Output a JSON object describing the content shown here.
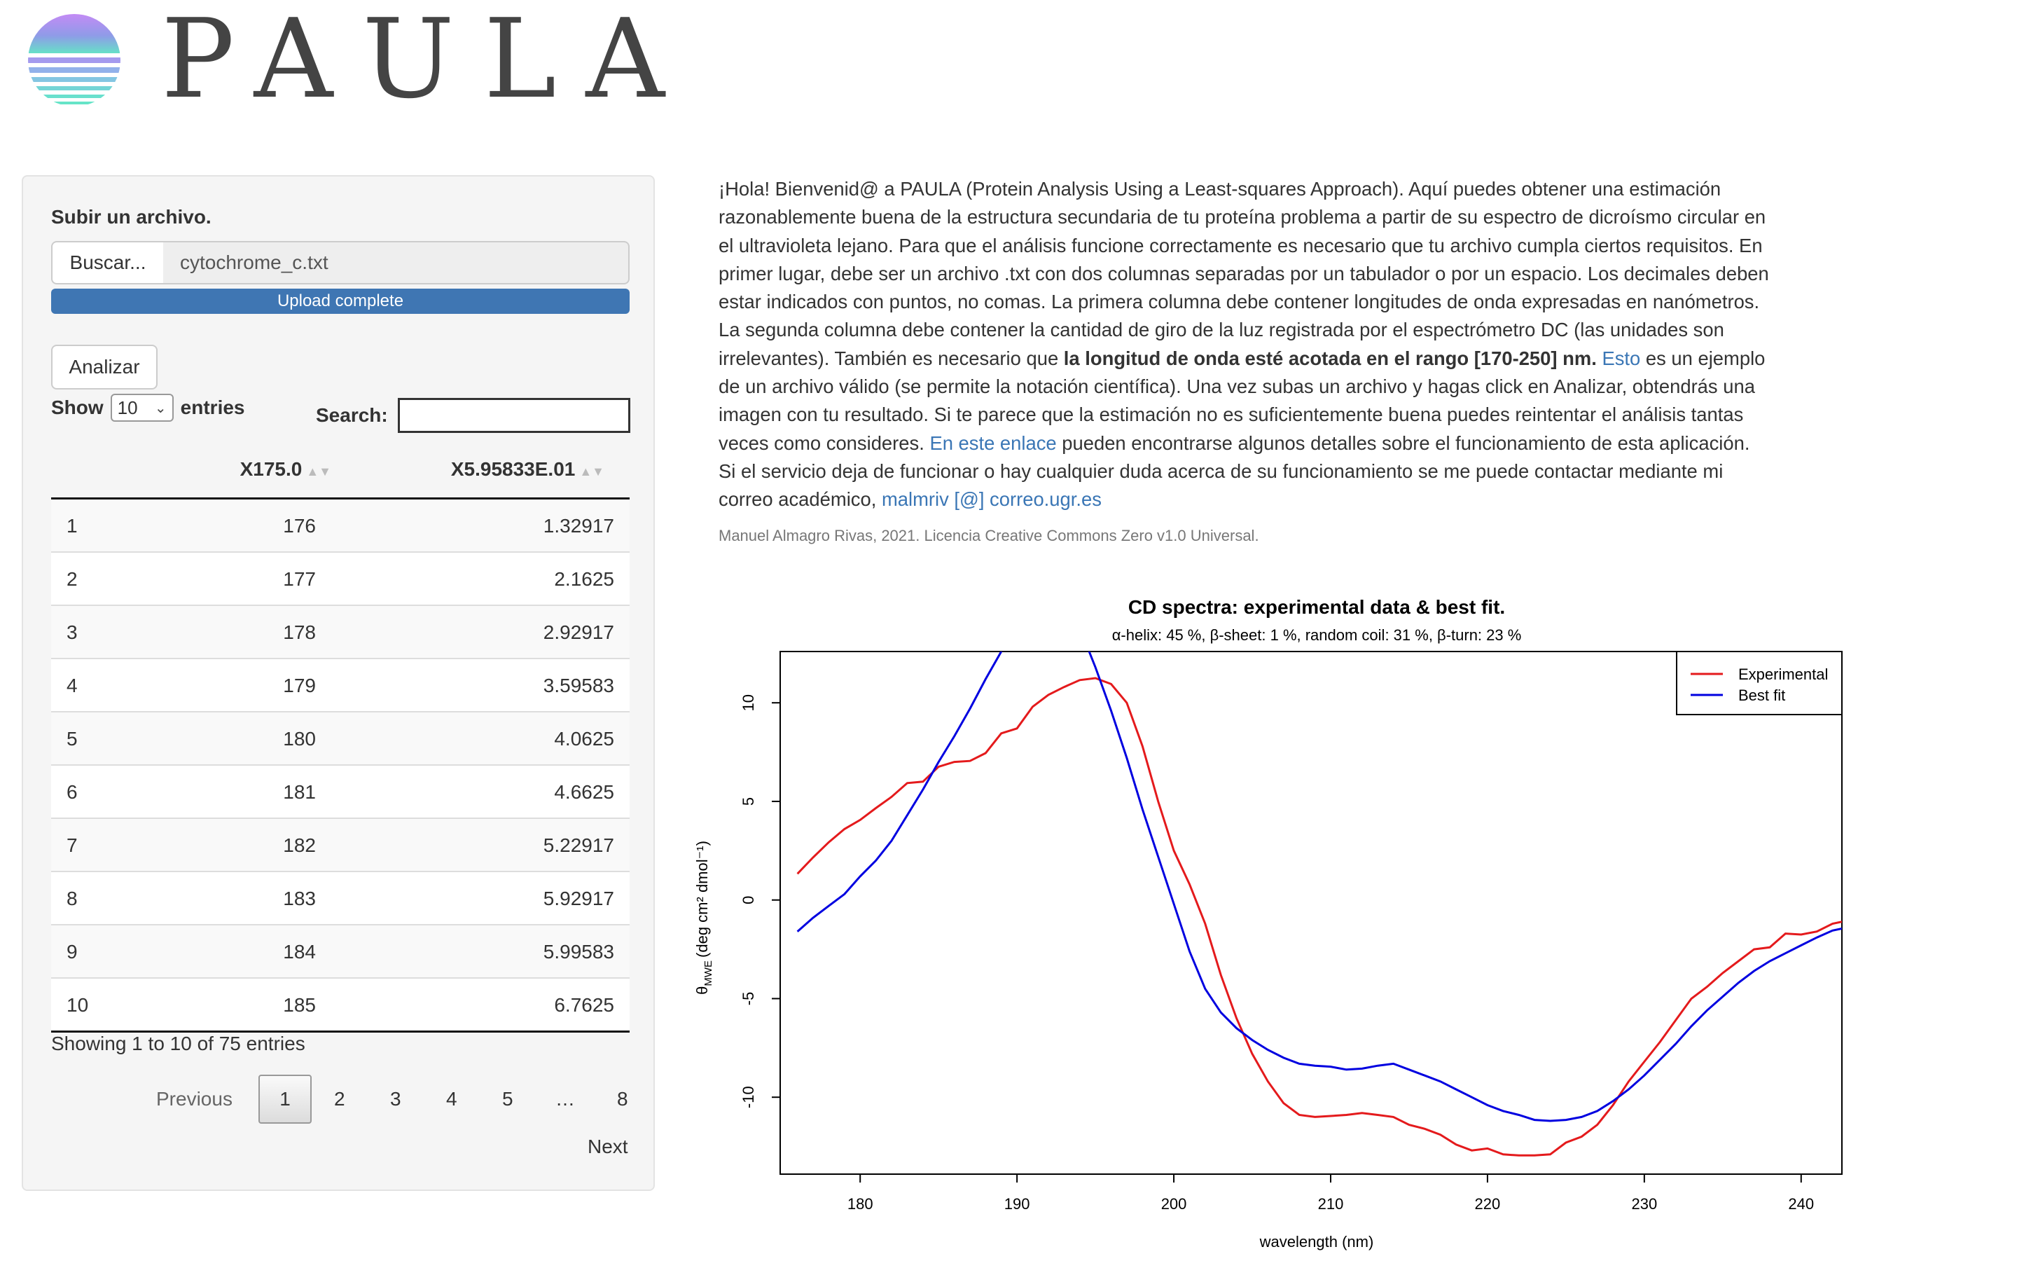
{
  "header": {
    "brand": "PAULA",
    "logo_icon": "sunset-gradient-icon"
  },
  "upload": {
    "label": "Subir un archivo.",
    "browse_label": "Buscar...",
    "file_name": "cytochrome_c.txt",
    "progress_text": "Upload complete",
    "progress": 1.0
  },
  "analyze_label": "Analizar",
  "table": {
    "show_label": "Show",
    "entries_label": "entries",
    "length_value": "10",
    "search_label": "Search:",
    "search_value": "",
    "columns": [
      "X175.0",
      "X5.95833E.01"
    ],
    "rows": [
      [
        "1",
        "176",
        "1.32917"
      ],
      [
        "2",
        "177",
        "2.1625"
      ],
      [
        "3",
        "178",
        "2.92917"
      ],
      [
        "4",
        "179",
        "3.59583"
      ],
      [
        "5",
        "180",
        "4.0625"
      ],
      [
        "6",
        "181",
        "4.6625"
      ],
      [
        "7",
        "182",
        "5.22917"
      ],
      [
        "8",
        "183",
        "5.92917"
      ],
      [
        "9",
        "184",
        "5.99583"
      ],
      [
        "10",
        "185",
        "6.7625"
      ]
    ],
    "info": "Showing 1 to 10 of 75 entries",
    "pagination": {
      "previous": "Previous",
      "pages": [
        "1",
        "2",
        "3",
        "4",
        "5",
        "…",
        "8"
      ],
      "current": "1",
      "next": "Next"
    }
  },
  "intro": {
    "p1": "¡Hola! Bienvenid@ a PAULA (Protein Analysis Using a Least-squares Approach). Aquí puedes obtener una estimación razonablemente buena de la estructura secundaria de tu proteína problema a partir de su espectro de dicroísmo circular en el ultravioleta lejano. Para que el análisis funcione correctamente es necesario que tu archivo cumpla ciertos requisitos. En primer lugar, debe ser un archivo .txt con dos columnas separadas por un tabulador o por un espacio. Los decimales deben estar indicados con puntos, no comas. La primera columna debe contener longitudes de onda expresadas en nanómetros. La segunda columna debe contener la cantidad de giro de la luz registrada por el espectrómetro DC (las unidades son irrelevantes). También es necesario que ",
    "bold": "la longitud de onda esté acotada en el rango [170-250] nm.",
    "link1": "Esto",
    "p2": " es un ejemplo de un archivo válido (se permite la notación científica). Una vez subas un archivo y hagas click en Analizar, obtendrás una imagen con tu resultado. Si te parece que la estimación no es suficientemente buena puedes reintentar el análisis tantas veces como consideres. ",
    "link2": "En este enlace",
    "p3": " pueden encontrarse algunos detalles sobre el funcionamiento de esta aplicación. Si el servicio deja de funcionar o hay cualquier duda acerca de su funcionamiento se me puede contactar mediante mi correo académico, ",
    "email": "malmriv [@] correo.ugr.es",
    "credit": "Manuel Almagro Rivas, 2021. Licencia Creative Commons Zero v1.0 Universal."
  },
  "chart_data": {
    "type": "line",
    "title": "CD spectra: experimental data & best fit.",
    "subtitle": "α-helix: 45 %, β-sheet: 1 %, random coil: 31 %, β-turn:  23 %",
    "xlabel": "wavelength (nm)",
    "ylabel_main": "θ",
    "ylabel_sub": "MWE",
    "ylabel_units": "(deg cm² dmol⁻¹)",
    "xlim": [
      174.9,
      242.6
    ],
    "ylim": [
      -13.9,
      12.6
    ],
    "xticks": [
      180,
      190,
      200,
      210,
      220,
      230,
      240
    ],
    "yticks": [
      -10,
      -5,
      0,
      5,
      10
    ],
    "legend_position": "top-right",
    "series": [
      {
        "name": "Experimental",
        "color": "#e41a1c",
        "x": [
          176,
          177,
          178,
          179,
          180,
          181,
          182,
          183,
          184,
          185,
          186,
          187,
          188,
          189,
          190,
          191,
          192,
          193,
          194,
          195,
          196,
          197,
          198,
          199,
          200,
          201,
          202,
          203,
          204,
          205,
          206,
          207,
          208,
          209,
          210,
          211,
          212,
          213,
          214,
          215,
          216,
          217,
          218,
          219,
          220,
          221,
          222,
          223,
          224,
          225,
          226,
          227,
          228,
          229,
          230,
          231,
          232,
          233,
          234,
          235,
          236,
          237,
          238,
          239,
          240,
          241,
          242,
          242.6
        ],
        "y": [
          1.33,
          2.16,
          2.93,
          3.6,
          4.06,
          4.66,
          5.23,
          5.93,
          6.0,
          6.76,
          7.0,
          7.05,
          7.45,
          8.45,
          8.7,
          9.8,
          10.4,
          10.8,
          11.15,
          11.25,
          10.95,
          10.0,
          7.8,
          5.0,
          2.5,
          0.8,
          -1.2,
          -3.8,
          -6.0,
          -7.8,
          -9.2,
          -10.3,
          -10.9,
          -11.0,
          -10.95,
          -10.9,
          -10.8,
          -10.9,
          -11.0,
          -11.4,
          -11.6,
          -11.9,
          -12.4,
          -12.7,
          -12.6,
          -12.9,
          -12.95,
          -12.95,
          -12.9,
          -12.3,
          -12.0,
          -11.4,
          -10.4,
          -9.2,
          -8.2,
          -7.2,
          -6.1,
          -5.0,
          -4.4,
          -3.7,
          -3.1,
          -2.5,
          -2.4,
          -1.7,
          -1.75,
          -1.6,
          -1.2,
          -1.1
        ]
      },
      {
        "name": "Best fit",
        "color": "#0000e0",
        "x": [
          176,
          177,
          178,
          179,
          180,
          181,
          182,
          183,
          184,
          185,
          186,
          187,
          188,
          189,
          190,
          192,
          194,
          195,
          196,
          197,
          198,
          199,
          200,
          201,
          202,
          203,
          204,
          205,
          206,
          207,
          208,
          209,
          210,
          211,
          212,
          213,
          214,
          215,
          216,
          217,
          218,
          219,
          220,
          221,
          222,
          223,
          224,
          225,
          226,
          227,
          228,
          229,
          230,
          231,
          232,
          233,
          234,
          235,
          236,
          237,
          238,
          239,
          240,
          241,
          242,
          242.6
        ],
        "y": [
          -1.6,
          -0.9,
          -0.3,
          0.3,
          1.2,
          2.0,
          3.0,
          4.3,
          5.6,
          7.0,
          8.3,
          9.7,
          11.2,
          12.6,
          14.0,
          14.5,
          13.8,
          11.8,
          9.6,
          7.2,
          4.6,
          2.2,
          -0.2,
          -2.6,
          -4.5,
          -5.7,
          -6.5,
          -7.1,
          -7.6,
          -8.0,
          -8.3,
          -8.4,
          -8.45,
          -8.6,
          -8.55,
          -8.4,
          -8.3,
          -8.6,
          -8.9,
          -9.2,
          -9.6,
          -10.0,
          -10.4,
          -10.7,
          -10.9,
          -11.15,
          -11.2,
          -11.15,
          -11.0,
          -10.7,
          -10.2,
          -9.6,
          -8.9,
          -8.1,
          -7.3,
          -6.4,
          -5.6,
          -4.9,
          -4.2,
          -3.6,
          -3.1,
          -2.7,
          -2.3,
          -1.9,
          -1.55,
          -1.45
        ]
      }
    ]
  }
}
